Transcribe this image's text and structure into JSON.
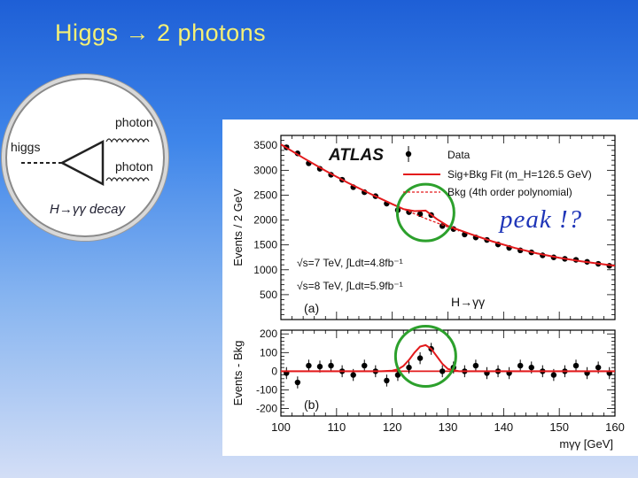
{
  "slide": {
    "title": "Higgs → 2 photons",
    "callout": "peak !?"
  },
  "feynman": {
    "higgs_label": "higgs",
    "photon_label_1": "photon",
    "photon_label_2": "photon",
    "decay_label": "H→γγ decay"
  },
  "colors": {
    "fit_line": "#e31a1c",
    "highlight_circle": "#2ca02c",
    "callout": "#1f35b8",
    "title": "#f4f076"
  },
  "chart_data": [
    {
      "type": "scatter",
      "panel": "(a)",
      "ylabel": "Events / 2 GeV",
      "xlim": [
        100,
        160
      ],
      "ylim": [
        0,
        3700
      ],
      "yticks": [
        500,
        1000,
        1500,
        2000,
        2500,
        3000,
        3500
      ],
      "experiment": "ATLAS",
      "legend": {
        "placement": "top-right",
        "entries": [
          "Data",
          "Sig+Bkg Fit (m_H=126.5 GeV)",
          "Bkg (4th order polynomial)"
        ]
      },
      "annotations": [
        "√s=7 TeV, ∫Ldt=4.8fb⁻¹",
        "√s=8 TeV, ∫Ldt=5.9fb⁻¹",
        "H→γγ"
      ],
      "series": [
        {
          "name": "Data",
          "x": [
            101,
            103,
            105,
            107,
            109,
            111,
            113,
            115,
            117,
            119,
            121,
            123,
            125,
            127,
            129,
            131,
            133,
            135,
            137,
            139,
            141,
            143,
            145,
            147,
            149,
            151,
            153,
            155,
            157,
            159
          ],
          "y": [
            3460,
            3340,
            3140,
            3030,
            2910,
            2810,
            2660,
            2560,
            2480,
            2330,
            2200,
            2160,
            2120,
            2100,
            1880,
            1820,
            1710,
            1650,
            1600,
            1510,
            1440,
            1390,
            1350,
            1290,
            1250,
            1220,
            1200,
            1160,
            1120,
            1080
          ]
        },
        {
          "name": "Sig+Bkg Fit",
          "x": [
            100,
            104,
            108,
            112,
            116,
            120,
            122,
            124,
            126,
            128,
            130,
            134,
            138,
            142,
            146,
            150,
            154,
            158,
            160
          ],
          "y": [
            3520,
            3250,
            2990,
            2750,
            2530,
            2320,
            2220,
            2180,
            2190,
            2020,
            1880,
            1720,
            1570,
            1440,
            1330,
            1240,
            1170,
            1110,
            1080
          ]
        },
        {
          "name": "Bkg",
          "x": [
            120,
            122,
            124,
            126,
            128,
            130,
            132
          ],
          "y": [
            2320,
            2220,
            2125,
            2030,
            1945,
            1860,
            1780
          ]
        }
      ]
    },
    {
      "type": "scatter",
      "panel": "(b)",
      "ylabel": "Events - Bkg",
      "xlabel": "mγγ [GeV]",
      "xlim": [
        100,
        160
      ],
      "ylim": [
        -240,
        220
      ],
      "yticks": [
        -200,
        -100,
        0,
        100,
        200
      ],
      "xticks": [
        100,
        110,
        120,
        130,
        140,
        150,
        160
      ],
      "series": [
        {
          "name": "Data",
          "x": [
            101,
            103,
            105,
            107,
            109,
            111,
            113,
            115,
            117,
            119,
            121,
            123,
            125,
            127,
            129,
            131,
            133,
            135,
            137,
            139,
            141,
            143,
            145,
            147,
            149,
            151,
            153,
            155,
            157,
            159
          ],
          "y": [
            -10,
            -60,
            30,
            25,
            30,
            0,
            -20,
            30,
            0,
            -50,
            -20,
            20,
            70,
            120,
            0,
            20,
            0,
            30,
            -10,
            0,
            -10,
            30,
            20,
            0,
            -20,
            0,
            30,
            -10,
            20,
            -10
          ]
        },
        {
          "name": "Sig+Bkg Fit",
          "x": [
            100,
            118,
            120,
            121,
            122,
            123,
            124,
            125,
            126,
            127,
            128,
            129,
            130,
            132,
            160
          ],
          "y": [
            0,
            0,
            3,
            10,
            28,
            60,
            100,
            132,
            140,
            120,
            80,
            40,
            12,
            0,
            0
          ]
        }
      ]
    }
  ]
}
